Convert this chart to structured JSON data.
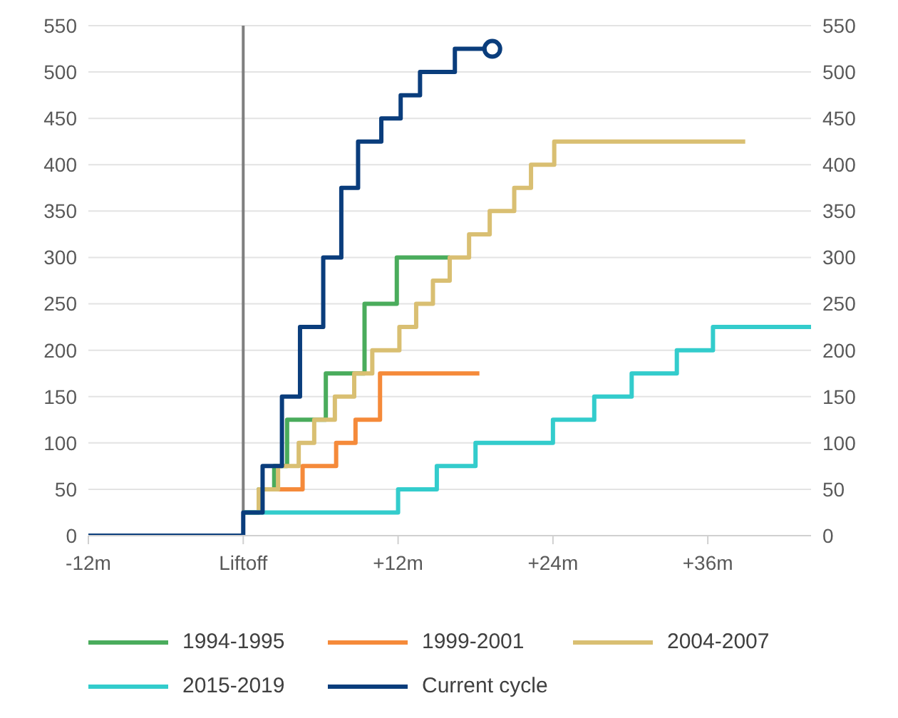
{
  "chart_data": {
    "type": "step",
    "xlim": [
      -12,
      44
    ],
    "xticks": [
      {
        "value": -12,
        "label": "-12m"
      },
      {
        "value": 0,
        "label": "Liftoff"
      },
      {
        "value": 12,
        "label": "+12m"
      },
      {
        "value": 24,
        "label": "+24m"
      },
      {
        "value": 36,
        "label": "+36m"
      }
    ],
    "ylim": [
      0,
      550
    ],
    "yticks": [
      0,
      50,
      100,
      150,
      200,
      250,
      300,
      350,
      400,
      450,
      500,
      550
    ],
    "y2lim": [
      0,
      550
    ],
    "y2ticks": [
      0,
      50,
      100,
      150,
      200,
      250,
      300,
      350,
      400,
      450,
      500,
      550
    ],
    "grid": "y",
    "legend": "bottom",
    "ref_lines": [
      {
        "axis": "x",
        "value": 0,
        "color": "#7f7f7f"
      }
    ],
    "series": [
      {
        "name": "1994-1995",
        "color": "#4aac5c",
        "x": [
          0,
          1.2,
          2.4,
          3.4,
          6.4,
          9.4,
          11.9,
          16
        ],
        "values": [
          25,
          50,
          75,
          125,
          175,
          250,
          300,
          300
        ]
      },
      {
        "name": "1999-2001",
        "color": "#f58a3a",
        "x": [
          1.9,
          4.6,
          7.2,
          8.7,
          10.6,
          18.3
        ],
        "values": [
          50,
          75,
          100,
          125,
          175,
          175
        ]
      },
      {
        "name": "2004-2007",
        "color": "#d9bf72",
        "x": [
          0,
          1.2,
          2.7,
          4.3,
          5.5,
          7.1,
          8.6,
          10,
          12.1,
          13.4,
          14.7,
          16,
          17.5,
          19.1,
          21,
          22.3,
          24.1,
          38.9
        ],
        "values": [
          25,
          50,
          75,
          100,
          125,
          150,
          175,
          200,
          225,
          250,
          275,
          300,
          325,
          350,
          375,
          400,
          425,
          425
        ]
      },
      {
        "name": "2015-2019",
        "color": "#33cccc",
        "x": [
          0,
          12,
          15,
          18,
          24,
          27.2,
          30.1,
          33.6,
          36.4,
          44
        ],
        "values": [
          25,
          50,
          75,
          100,
          125,
          150,
          175,
          200,
          225,
          225
        ]
      },
      {
        "name": "Current cycle",
        "color": "#0a3d7c",
        "x": [
          -12,
          0,
          1.5,
          3,
          4.4,
          6.2,
          7.6,
          8.9,
          10.7,
          12.2,
          13.7,
          16.4,
          19.3
        ],
        "values": [
          0,
          25,
          75,
          150,
          225,
          300,
          375,
          425,
          450,
          475,
          500,
          525,
          525
        ]
      },
      {
        "type": "scatter",
        "marker": "circle",
        "color": "#0a3d7c",
        "x": [
          19.3
        ],
        "values": [
          525
        ]
      }
    ]
  }
}
